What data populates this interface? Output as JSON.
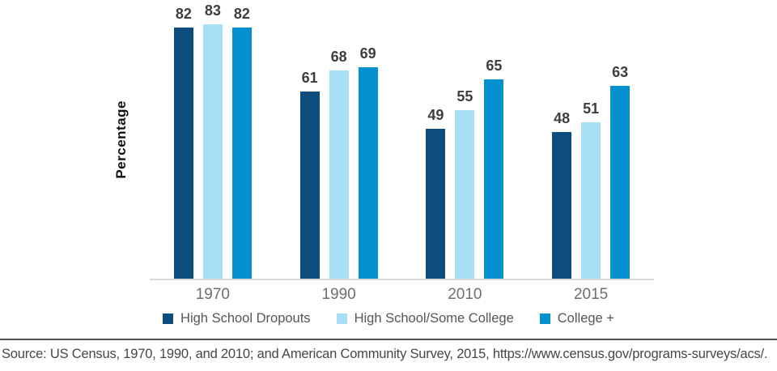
{
  "chart_data": {
    "type": "bar",
    "title": "",
    "categories": [
      "1970",
      "1990",
      "2010",
      "2015"
    ],
    "series": [
      {
        "name": "High School Dropouts",
        "color": "#0c4d7e",
        "values": [
          82,
          61,
          49,
          48
        ]
      },
      {
        "name": "High School/Some College",
        "color": "#a9def7",
        "values": [
          83,
          68,
          55,
          51
        ]
      },
      {
        "name": "College +",
        "color": "#0591d0",
        "values": [
          82,
          69,
          65,
          63
        ]
      }
    ],
    "xlabel": "",
    "ylabel": "Percentage",
    "ylim": [
      0,
      100
    ],
    "grid": false,
    "value_labels": true,
    "legend_position": "bottom"
  },
  "footer": {
    "source_text": "Source: US Census, 1970, 1990, and 2010; and American Community Survey, 2015, https://www.census.gov/programs-surveys/acs/."
  }
}
